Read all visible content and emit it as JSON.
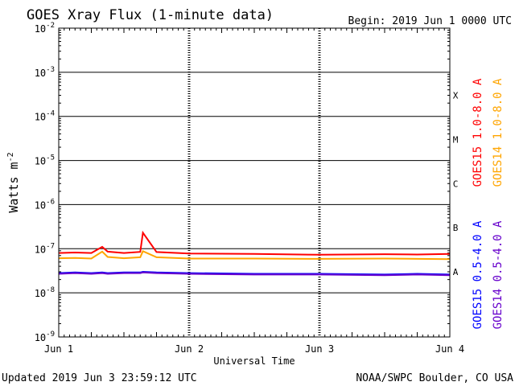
{
  "chart_data": {
    "type": "line",
    "title": "GOES Xray Flux (1-minute data)",
    "begin_text": "Begin:  2019 Jun 1 0000 UTC",
    "xlabel": "Universal Time",
    "ylabel": "Watts m",
    "ylabel_exponent": "-2",
    "y_scale": "log",
    "ylim": [
      1e-09,
      0.01
    ],
    "y_tick_bases": [
      "10",
      "10",
      "10",
      "10",
      "10",
      "10",
      "10",
      "10"
    ],
    "y_tick_exponents": [
      "-2",
      "-3",
      "-4",
      "-5",
      "-6",
      "-7",
      "-8",
      "-9"
    ],
    "y_tick_values": [
      0.01,
      0.001,
      0.0001,
      1e-05,
      1e-06,
      1e-07,
      1e-08,
      1e-09
    ],
    "xlim": [
      "2019-06-01",
      "2019-06-04"
    ],
    "x_tick_labels": [
      "Jun 1",
      "Jun 2",
      "Jun 3",
      "Jun 4"
    ],
    "x_tick_dates": [
      "2019-06-01",
      "2019-06-02",
      "2019-06-03",
      "2019-06-04"
    ],
    "gridlines_y": true,
    "flare_classes": [
      {
        "label": "X",
        "value": 0.0003
      },
      {
        "label": "M",
        "value": 3e-05
      },
      {
        "label": "C",
        "value": 3e-06
      },
      {
        "label": "B",
        "value": 3e-07
      },
      {
        "label": "A",
        "value": 3e-08
      }
    ],
    "x": [
      "2019-06-01 00:00",
      "2019-06-01 03:00",
      "2019-06-01 06:00",
      "2019-06-01 08:00",
      "2019-06-01 09:00",
      "2019-06-01 12:00",
      "2019-06-01 15:00",
      "2019-06-01 15:30",
      "2019-06-01 18:00",
      "2019-06-02 00:00",
      "2019-06-02 12:00",
      "2019-06-03 00:00",
      "2019-06-03 12:00",
      "2019-06-03 18:00",
      "2019-06-04 00:00"
    ],
    "series": [
      {
        "name": "GOES15 1.0-8.0 A",
        "color": "#ff0000",
        "values": [
          8e-08,
          8.2e-08,
          8e-08,
          1.1e-07,
          8.6e-08,
          8e-08,
          8.5e-08,
          2.3e-07,
          8.4e-08,
          7.8e-08,
          7.6e-08,
          7.3e-08,
          7.5e-08,
          7.4e-08,
          7.6e-08
        ]
      },
      {
        "name": "GOES14 1.0-8.0 A",
        "color": "#ffa500",
        "values": [
          6.1e-08,
          6.2e-08,
          6e-08,
          8.6e-08,
          6.5e-08,
          6.1e-08,
          6.4e-08,
          8.8e-08,
          6.4e-08,
          6e-08,
          6e-08,
          5.9e-08,
          6e-08,
          5.9e-08,
          5.8e-08
        ]
      },
      {
        "name": "GOES15 0.5-4.0 A",
        "color": "#0000ff",
        "values": [
          2.8e-08,
          2.9e-08,
          2.8e-08,
          2.9e-08,
          2.8e-08,
          2.9e-08,
          2.9e-08,
          3e-08,
          2.9e-08,
          2.8e-08,
          2.7e-08,
          2.7e-08,
          2.6e-08,
          2.7e-08,
          2.6e-08
        ]
      },
      {
        "name": "GOES14 0.5-4.0 A",
        "color": "#6600cc",
        "values": [
          2.7e-08,
          2.8e-08,
          2.7e-08,
          2.8e-08,
          2.7e-08,
          2.8e-08,
          2.8e-08,
          2.9e-08,
          2.8e-08,
          2.7e-08,
          2.6e-08,
          2.6e-08,
          2.5e-08,
          2.6e-08,
          2.5e-08
        ]
      }
    ]
  },
  "footer": {
    "updated": "Updated 2019 Jun  3 23:59:12 UTC",
    "credit": "NOAA/SWPC Boulder, CO USA"
  }
}
